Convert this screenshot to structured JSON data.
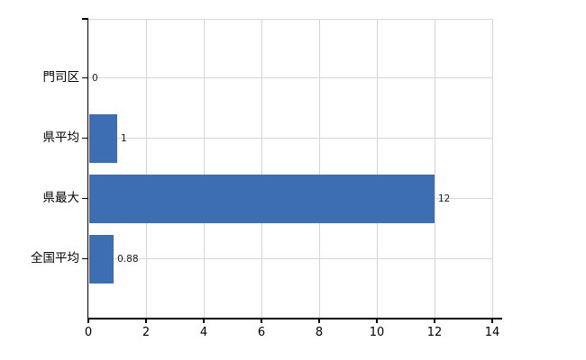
{
  "chart_data": {
    "type": "bar",
    "orientation": "horizontal",
    "title": "",
    "xlabel": "",
    "ylabel": "",
    "categories": [
      "門司区",
      "県平均",
      "県最大",
      "全国平均"
    ],
    "values": [
      0,
      1,
      12,
      0.88
    ],
    "value_labels": [
      "0",
      "1",
      "12",
      "0.88"
    ],
    "xlim": [
      0,
      14
    ],
    "x_ticks": [
      0,
      2,
      4,
      6,
      8,
      10,
      12,
      14
    ],
    "x_tick_labels": [
      "0",
      "2",
      "4",
      "6",
      "8",
      "10",
      "12",
      "14"
    ],
    "grid": true,
    "legend": "none",
    "colors": {
      "bar": "#3d6eb4",
      "grid": "#d6d6d6",
      "axis": "#000000",
      "category_text": "#000000",
      "tick_text": "#000000",
      "value_text": "#1a1a1a",
      "background": "#ffffff"
    }
  }
}
